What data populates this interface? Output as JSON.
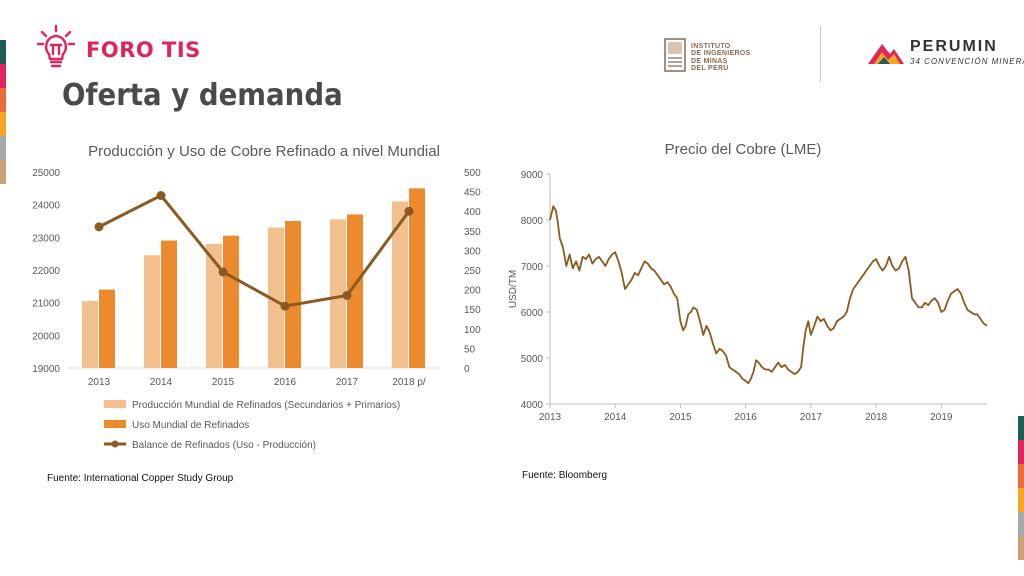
{
  "header": {
    "brand": "FORO TIS",
    "title": "Oferta y demanda",
    "institute_lines": [
      "INSTITUTO",
      "DE INGENIEROS",
      "DE MINAS",
      "DEL PERÚ"
    ],
    "perumin_name": "PERUMIN",
    "perumin_sub": "34 CONVENCIÓN MINERA"
  },
  "colors": {
    "accent": "#e0245e",
    "produccion": "#f2c08f",
    "uso": "#ec8a2e",
    "balance": "#8b5a1f",
    "precio": "#8b5a1f",
    "side_bars": [
      "#1f5c5a",
      "#e0245e",
      "#ec6b3a",
      "#f5a623",
      "#a7a9ac",
      "#c9a27a"
    ]
  },
  "sources": {
    "left": "Fuente: International Copper Study Group",
    "right": "Fuente: Bloomberg"
  },
  "chart_data": [
    {
      "type": "bar",
      "title": "Producción y Uso de Cobre Refinado a nivel Mundial",
      "categories": [
        "2013",
        "2014",
        "2015",
        "2016",
        "2017",
        "2018 p/"
      ],
      "ylim": [
        19000,
        25000
      ],
      "yticks": [
        19000,
        20000,
        21000,
        22000,
        23000,
        24000,
        25000
      ],
      "y2lim": [
        0,
        500
      ],
      "y2ticks": [
        0,
        50,
        100,
        150,
        200,
        250,
        300,
        350,
        400,
        450,
        500
      ],
      "series": [
        {
          "name": "Producción Mundial de Refinados (Secundarios + Primarios)",
          "kind": "bar",
          "axis": "left",
          "values": [
            21050,
            22450,
            22800,
            23300,
            23550,
            24100
          ]
        },
        {
          "name": "Uso Mundial de Refinados",
          "kind": "bar",
          "axis": "left",
          "values": [
            21400,
            22900,
            23050,
            23500,
            23700,
            24500
          ]
        },
        {
          "name": "Balance de Refinados (Uso - Producción)",
          "kind": "line",
          "axis": "right",
          "values": [
            360,
            440,
            245,
            158,
            185,
            400
          ]
        }
      ],
      "legend": "bottom",
      "grid": false
    },
    {
      "type": "line",
      "title": "Precio del Cobre (LME)",
      "ylabel": "USD/TM",
      "xlim": [
        2013,
        2019.7
      ],
      "xticks": [
        "2013",
        "2014",
        "2015",
        "2016",
        "2017",
        "2018",
        "2019"
      ],
      "ylim": [
        4000,
        9000
      ],
      "yticks": [
        4000,
        5000,
        6000,
        7000,
        8000,
        9000
      ],
      "grid": false,
      "series": [
        {
          "name": "LME",
          "x": [
            2013.0,
            2013.05,
            2013.09,
            2013.12,
            2013.15,
            2013.2,
            2013.25,
            2013.3,
            2013.35,
            2013.4,
            2013.45,
            2013.5,
            2013.55,
            2013.6,
            2013.65,
            2013.7,
            2013.75,
            2013.8,
            2013.85,
            2013.9,
            2013.95,
            2014.0,
            2014.05,
            2014.1,
            2014.15,
            2014.2,
            2014.25,
            2014.3,
            2014.35,
            2014.4,
            2014.45,
            2014.5,
            2014.55,
            2014.6,
            2014.65,
            2014.7,
            2014.75,
            2014.8,
            2014.85,
            2014.9,
            2014.95,
            2015.0,
            2015.04,
            2015.08,
            2015.12,
            2015.16,
            2015.2,
            2015.25,
            2015.3,
            2015.35,
            2015.4,
            2015.45,
            2015.5,
            2015.55,
            2015.6,
            2015.65,
            2015.7,
            2015.75,
            2015.8,
            2015.85,
            2015.9,
            2015.95,
            2016.0,
            2016.04,
            2016.08,
            2016.12,
            2016.16,
            2016.2,
            2016.25,
            2016.3,
            2016.35,
            2016.4,
            2016.45,
            2016.5,
            2016.55,
            2016.6,
            2016.65,
            2016.7,
            2016.75,
            2016.8,
            2016.85,
            2016.88,
            2016.92,
            2016.96,
            2017.0,
            2017.05,
            2017.1,
            2017.15,
            2017.2,
            2017.25,
            2017.3,
            2017.35,
            2017.4,
            2017.45,
            2017.5,
            2017.55,
            2017.6,
            2017.65,
            2017.7,
            2017.75,
            2017.8,
            2017.85,
            2017.9,
            2017.95,
            2018.0,
            2018.05,
            2018.1,
            2018.15,
            2018.2,
            2018.25,
            2018.3,
            2018.35,
            2018.4,
            2018.45,
            2018.5,
            2018.55,
            2018.6,
            2018.65,
            2018.7,
            2018.75,
            2018.8,
            2018.85,
            2018.9,
            2018.95,
            2019.0,
            2019.05,
            2019.1,
            2019.15,
            2019.2,
            2019.25,
            2019.3,
            2019.35,
            2019.4,
            2019.45,
            2019.5,
            2019.55,
            2019.6,
            2019.65,
            2019.7
          ],
          "y": [
            8000,
            8300,
            8200,
            7950,
            7600,
            7400,
            7000,
            7250,
            6950,
            7100,
            6900,
            7200,
            7150,
            7250,
            7050,
            7150,
            7200,
            7100,
            7000,
            7150,
            7250,
            7300,
            7100,
            6850,
            6500,
            6600,
            6700,
            6850,
            6800,
            6950,
            7100,
            7050,
            6950,
            6900,
            6800,
            6700,
            6600,
            6650,
            6550,
            6400,
            6300,
            5800,
            5600,
            5700,
            5950,
            6000,
            6100,
            6050,
            5800,
            5500,
            5700,
            5550,
            5300,
            5100,
            5200,
            5150,
            5050,
            4800,
            4750,
            4700,
            4650,
            4550,
            4500,
            4450,
            4550,
            4700,
            4950,
            4900,
            4800,
            4750,
            4750,
            4700,
            4800,
            4900,
            4800,
            4850,
            4750,
            4700,
            4650,
            4700,
            4800,
            5200,
            5600,
            5800,
            5500,
            5700,
            5900,
            5800,
            5850,
            5700,
            5600,
            5650,
            5800,
            5850,
            5900,
            6000,
            6300,
            6500,
            6600,
            6700,
            6800,
            6900,
            7000,
            7100,
            7150,
            7000,
            6900,
            7000,
            7200,
            7000,
            6900,
            6950,
            7100,
            7200,
            6900,
            6300,
            6200,
            6100,
            6100,
            6200,
            6150,
            6250,
            6300,
            6200,
            6000,
            6050,
            6250,
            6400,
            6450,
            6500,
            6400,
            6200,
            6050,
            6000,
            5950,
            5950,
            5850,
            5750,
            5700
          ]
        }
      ]
    }
  ]
}
